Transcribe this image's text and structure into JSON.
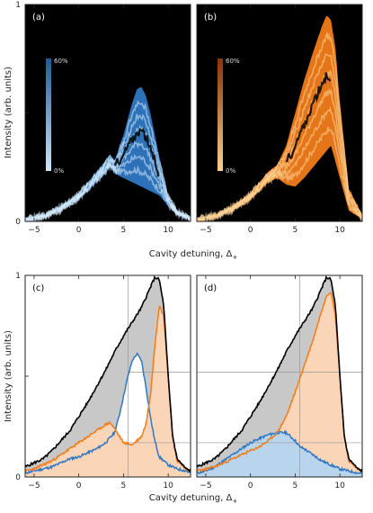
{
  "labels": {
    "a": "(a)",
    "b": "(b)",
    "c": "(c)",
    "d": "(d)",
    "xlabel": "Cavity detuning, Δ",
    "xlabel_sub": "+",
    "ylabel": "Intensity (arb. units)",
    "y_tick_1": "1",
    "y_tick_0": "0",
    "cbar_top": "60%",
    "cbar_bottom": "0%"
  },
  "colors": {
    "blue": "#2f78c3",
    "orange": "#f07c1a",
    "black": "#000000",
    "gray_fill": "#c8c8c8",
    "orange_fill": "#fbd5b7",
    "blue_fill": "#b9d5ee",
    "panel_bg": "#000000"
  },
  "chart_data": [
    {
      "panel": "(a)",
      "type": "area",
      "xlim": [
        -6,
        12.5
      ],
      "ylim": [
        0,
        1
      ],
      "x_ticks": [
        -5,
        0,
        5,
        10
      ],
      "y_tick_labels": [
        "1",
        "0"
      ],
      "colorbar": {
        "top": "60%",
        "bottom": "0%",
        "color_low": "#cfe6f8",
        "color_high": "#1f5b96"
      },
      "envelope_upper": {
        "x": [
          -6,
          -4,
          -2,
          0,
          1,
          2,
          3,
          3.5,
          4,
          5,
          6,
          6.5,
          7,
          7.5,
          8,
          9,
          10,
          11,
          12.5
        ],
        "y": [
          0.01,
          0.03,
          0.07,
          0.13,
          0.18,
          0.23,
          0.28,
          0.31,
          0.28,
          0.4,
          0.55,
          0.61,
          0.62,
          0.58,
          0.5,
          0.3,
          0.12,
          0.05,
          0.02
        ]
      },
      "envelope_lower": {
        "x": [
          -6,
          -4,
          -2,
          0,
          1,
          2,
          3,
          3.5,
          4,
          5,
          6,
          7,
          8,
          9,
          10,
          11,
          12.5
        ],
        "y": [
          0.0,
          0.02,
          0.05,
          0.1,
          0.14,
          0.18,
          0.22,
          0.25,
          0.22,
          0.2,
          0.18,
          0.16,
          0.14,
          0.12,
          0.07,
          0.03,
          0.01
        ]
      }
    },
    {
      "panel": "(b)",
      "type": "area",
      "xlim": [
        -6,
        12.5
      ],
      "ylim": [
        0,
        1
      ],
      "x_ticks": [
        -5,
        0,
        5,
        10
      ],
      "colorbar": {
        "top": "60%",
        "bottom": "0%",
        "color_low": "#ffd08a",
        "color_high": "#8a3300"
      },
      "envelope_upper": {
        "x": [
          -6,
          -4,
          -2,
          0,
          1,
          2,
          3,
          4,
          5,
          6,
          7,
          8,
          8.5,
          9,
          9.5,
          10,
          11,
          12.5
        ],
        "y": [
          0.01,
          0.03,
          0.07,
          0.13,
          0.18,
          0.23,
          0.26,
          0.35,
          0.5,
          0.65,
          0.78,
          0.9,
          0.95,
          0.93,
          0.8,
          0.55,
          0.15,
          0.03
        ]
      },
      "envelope_lower": {
        "x": [
          -6,
          -4,
          -2,
          0,
          1,
          2,
          3,
          4,
          5,
          6,
          7,
          8,
          9,
          10,
          11,
          12.5
        ],
        "y": [
          0.0,
          0.02,
          0.05,
          0.1,
          0.14,
          0.18,
          0.2,
          0.17,
          0.16,
          0.2,
          0.25,
          0.3,
          0.35,
          0.2,
          0.05,
          0.01
        ]
      }
    },
    {
      "panel": "(c)",
      "type": "line",
      "xlim": [
        -6,
        12.5
      ],
      "ylim": [
        0,
        1
      ],
      "x_ticks": [
        -5,
        0,
        5,
        10
      ],
      "y_tick_labels": [
        "1",
        "0"
      ],
      "guide_vertical_x": 5.5,
      "guide_horizontals_y": [
        0.52,
        0.17
      ],
      "series": [
        {
          "color": "black",
          "x": [
            -6,
            -5,
            -4,
            -3,
            -2,
            -1,
            0,
            1,
            2,
            3,
            4,
            5,
            6,
            7,
            7.5,
            8,
            8.5,
            9,
            9.5,
            10,
            10.5,
            11,
            12,
            12.5
          ],
          "y": [
            0.05,
            0.07,
            0.09,
            0.13,
            0.18,
            0.23,
            0.3,
            0.37,
            0.45,
            0.53,
            0.62,
            0.7,
            0.77,
            0.84,
            0.89,
            0.94,
            0.99,
            0.98,
            0.85,
            0.5,
            0.2,
            0.09,
            0.04,
            0.03
          ]
        },
        {
          "color": "blue",
          "x": [
            -6,
            -5,
            -4,
            -3,
            -2,
            -1,
            0,
            1,
            2,
            3,
            4,
            4.5,
            5,
            5.5,
            6,
            6.5,
            7,
            7.5,
            8,
            8.5,
            9,
            10,
            11,
            12,
            12.5
          ],
          "y": [
            0.02,
            0.03,
            0.04,
            0.05,
            0.07,
            0.09,
            0.1,
            0.12,
            0.14,
            0.17,
            0.22,
            0.3,
            0.4,
            0.5,
            0.58,
            0.61,
            0.58,
            0.45,
            0.3,
            0.18,
            0.1,
            0.06,
            0.04,
            0.03,
            0.02
          ]
        },
        {
          "color": "orange",
          "x": [
            -6,
            -5,
            -4,
            -3,
            -2,
            -1,
            0,
            1,
            2,
            3,
            3.5,
            4,
            5,
            6,
            7,
            7.5,
            8,
            8.5,
            9,
            9.5,
            10,
            10.5,
            11,
            12,
            12.5
          ],
          "y": [
            0.03,
            0.04,
            0.06,
            0.08,
            0.11,
            0.14,
            0.17,
            0.2,
            0.23,
            0.26,
            0.27,
            0.24,
            0.17,
            0.16,
            0.2,
            0.26,
            0.4,
            0.65,
            0.85,
            0.8,
            0.5,
            0.2,
            0.08,
            0.04,
            0.03
          ]
        }
      ]
    },
    {
      "panel": "(d)",
      "type": "line",
      "xlim": [
        -6,
        12.5
      ],
      "ylim": [
        0,
        1
      ],
      "x_ticks": [
        -5,
        0,
        5,
        10
      ],
      "guide_vertical_x": 5.5,
      "guide_horizontals_y": [
        0.52,
        0.17
      ],
      "series": [
        {
          "color": "black",
          "x": [
            -6,
            -5,
            -4,
            -3,
            -2,
            -1,
            0,
            1,
            2,
            3,
            4,
            5,
            6,
            7,
            7.5,
            8,
            8.5,
            9,
            9.5,
            10,
            10.5,
            11,
            12,
            12.5
          ],
          "y": [
            0.05,
            0.07,
            0.09,
            0.13,
            0.18,
            0.23,
            0.3,
            0.37,
            0.45,
            0.53,
            0.62,
            0.7,
            0.77,
            0.84,
            0.89,
            0.94,
            0.99,
            0.98,
            0.85,
            0.5,
            0.2,
            0.09,
            0.04,
            0.03
          ]
        },
        {
          "color": "blue",
          "x": [
            -6,
            -5,
            -4,
            -3,
            -2,
            -1,
            0,
            1,
            2,
            3,
            4,
            5,
            5.5,
            6,
            7,
            8,
            9,
            9.5,
            10,
            11,
            12,
            12.5
          ],
          "y": [
            0.02,
            0.03,
            0.05,
            0.08,
            0.11,
            0.14,
            0.17,
            0.19,
            0.21,
            0.22,
            0.22,
            0.18,
            0.15,
            0.14,
            0.11,
            0.08,
            0.06,
            0.05,
            0.04,
            0.03,
            0.02,
            0.02
          ]
        },
        {
          "color": "orange",
          "x": [
            -6,
            -5,
            -4,
            -3,
            -2,
            -1,
            0,
            1,
            2,
            3,
            4,
            5,
            6,
            7,
            8,
            8.5,
            9,
            9.5,
            10,
            10.5,
            11,
            12,
            12.5
          ],
          "y": [
            0.03,
            0.04,
            0.05,
            0.07,
            0.09,
            0.11,
            0.13,
            0.15,
            0.18,
            0.22,
            0.3,
            0.42,
            0.55,
            0.68,
            0.83,
            0.9,
            0.92,
            0.8,
            0.5,
            0.2,
            0.08,
            0.04,
            0.03
          ]
        }
      ]
    }
  ]
}
